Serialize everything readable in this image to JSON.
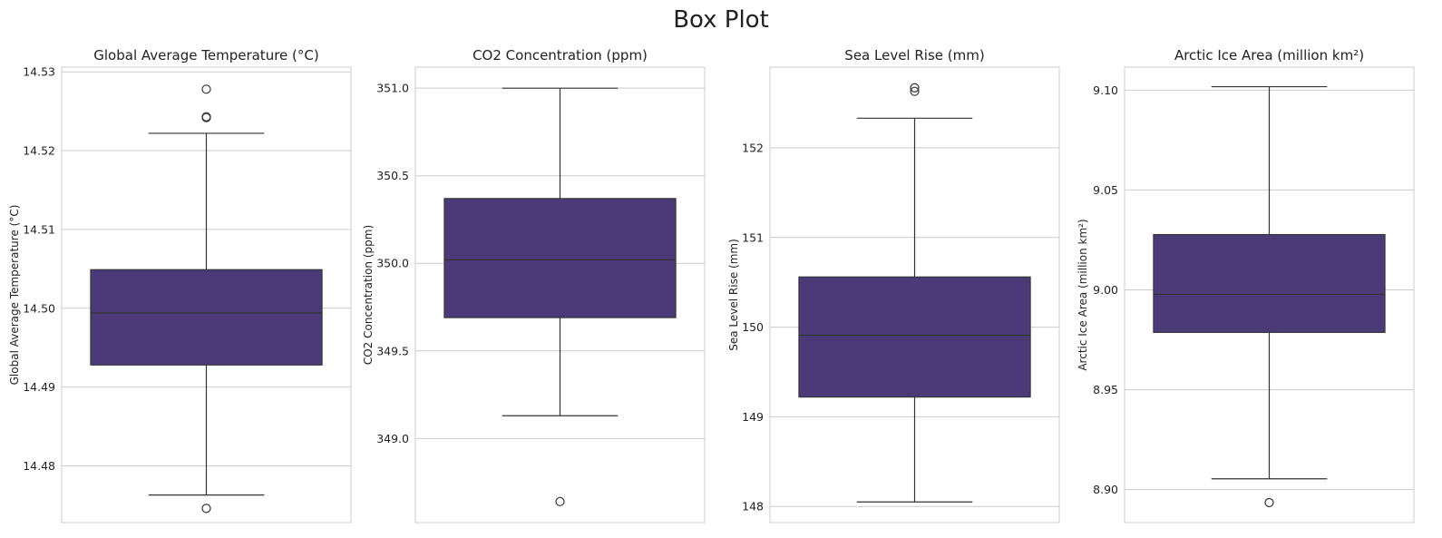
{
  "figure_title": "Box Plot",
  "box_color": "#4a3b78",
  "chart_data": [
    {
      "type": "box",
      "title": "Global Average Temperature (°C)",
      "ylabel": "Global Average Temperature (°C)",
      "ylim": [
        14.4728,
        14.5306
      ],
      "yticks": [
        14.48,
        14.49,
        14.5,
        14.51,
        14.52,
        14.53
      ],
      "ytick_labels": [
        "14.48",
        "14.49",
        "14.50",
        "14.51",
        "14.52",
        "14.53"
      ],
      "whisker_low": 14.4763,
      "q1": 14.4928,
      "median": 14.4994,
      "q3": 14.5049,
      "whisker_high": 14.5222,
      "outliers": [
        14.4746,
        14.5242,
        14.5243,
        14.5278
      ]
    },
    {
      "type": "box",
      "title": "CO2 Concentration (ppm)",
      "ylabel": "CO2 Concentration (ppm)",
      "ylim": [
        348.52,
        351.12
      ],
      "yticks": [
        349.0,
        349.5,
        350.0,
        350.5,
        351.0
      ],
      "ytick_labels": [
        "349.0",
        "349.5",
        "350.0",
        "350.5",
        "351.0"
      ],
      "whisker_low": 349.13,
      "q1": 349.69,
      "median": 350.02,
      "q3": 350.37,
      "whisker_high": 351.0,
      "outliers": [
        348.64
      ]
    },
    {
      "type": "box",
      "title": "Sea Level Rise (mm)",
      "ylabel": "Sea Level Rise (mm)",
      "ylim": [
        147.82,
        152.9
      ],
      "yticks": [
        148,
        149,
        150,
        151,
        152
      ],
      "ytick_labels": [
        "148",
        "149",
        "150",
        "151",
        "152"
      ],
      "whisker_low": 148.05,
      "q1": 149.22,
      "median": 149.91,
      "q3": 150.56,
      "whisker_high": 152.33,
      "outliers": [
        152.63,
        152.67
      ]
    },
    {
      "type": "box",
      "title": "Arctic Ice Area (million km²)",
      "ylabel": "Arctic Ice Area (million km²)",
      "ylim": [
        8.8835,
        9.1115
      ],
      "yticks": [
        8.9,
        8.95,
        9.0,
        9.05,
        9.1
      ],
      "ytick_labels": [
        "8.90",
        "8.95",
        "9.00",
        "9.05",
        "9.10"
      ],
      "whisker_low": 8.9054,
      "q1": 8.9787,
      "median": 8.9978,
      "q3": 9.0277,
      "whisker_high": 9.1017,
      "outliers": [
        8.8935
      ]
    }
  ]
}
